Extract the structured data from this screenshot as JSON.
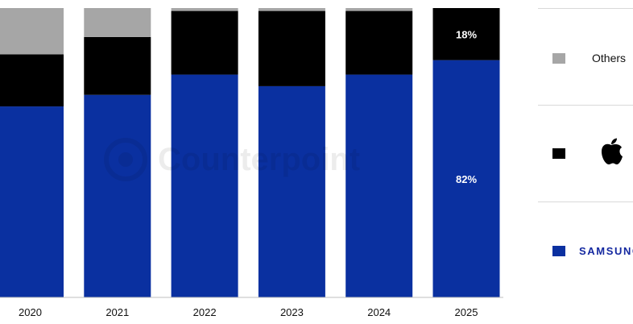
{
  "watermark": "Counterpoint",
  "legend": {
    "others_label": "Others",
    "apple_icon": "apple-logo-icon",
    "samsung_label": "SAMSUNG"
  },
  "colors": {
    "samsung": "#0a30a0",
    "apple": "#000000",
    "others": "#a6a6a6",
    "samsung_text": "#1428a0"
  },
  "chart_data": {
    "type": "bar",
    "stacked": true,
    "normalized_to_100": true,
    "categories": [
      "2020",
      "2021",
      "2022",
      "2023",
      "2024",
      "2025"
    ],
    "series": [
      {
        "name": "SAMSUNG",
        "values": [
          66,
          70,
          77,
          73,
          77,
          82
        ]
      },
      {
        "name": "Apple",
        "values": [
          18,
          20,
          22,
          26,
          22,
          18
        ]
      },
      {
        "name": "Others",
        "values": [
          16,
          10,
          1,
          1,
          1,
          0
        ]
      }
    ],
    "data_labels": [
      {
        "category": "2025",
        "series": "SAMSUNG",
        "text": "82%"
      },
      {
        "category": "2025",
        "series": "Apple",
        "text": "18%"
      }
    ],
    "ylim": [
      0,
      100
    ],
    "legend_position": "right",
    "grid": false
  }
}
